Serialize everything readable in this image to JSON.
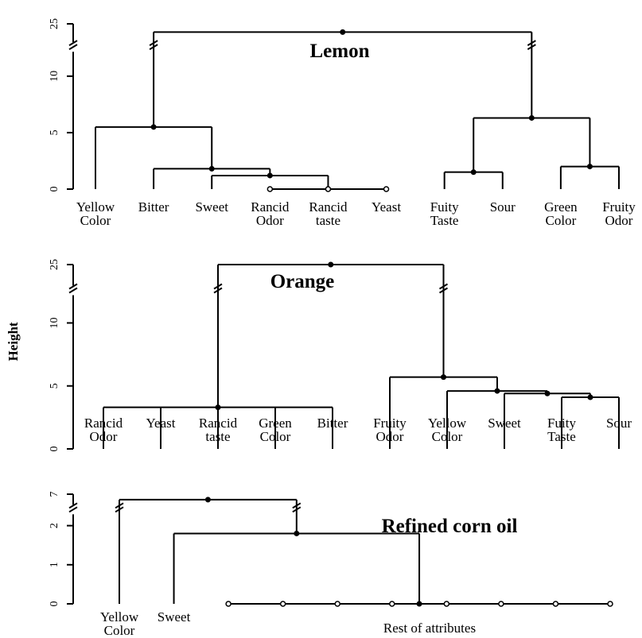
{
  "chart_data": [
    {
      "type": "dendrogram",
      "title": "Lemon",
      "categories": [
        "Yellow\nColor",
        "Bitter",
        "Sweet",
        "Rancid\nOdor",
        "Rancid\ntaste",
        "Yeast",
        "Fuity\nTaste",
        "Sour",
        "Green\nColor",
        "Fruity\nOdor"
      ],
      "merges": [
        {
          "children": [
            3,
            4,
            5
          ],
          "height": 0
        },
        {
          "children": [
            2,
            10
          ],
          "height": 1.2
        },
        {
          "children": [
            1,
            11
          ],
          "height": 1.8
        },
        {
          "children": [
            0,
            12
          ],
          "height": 5.5
        },
        {
          "children": [
            6,
            7
          ],
          "height": 1.5
        },
        {
          "children": [
            8,
            9
          ],
          "height": 2
        },
        {
          "children": [
            14,
            15
          ],
          "height": 6.3
        },
        {
          "children": [
            13,
            16
          ],
          "height": 23.5
        }
      ],
      "ylim": [
        0,
        25
      ],
      "yticks": [
        0,
        5,
        10,
        25
      ],
      "axis_break": [
        12,
        22
      ]
    },
    {
      "type": "dendrogram",
      "title": "Orange",
      "ylabel": "Height",
      "categories": [
        "Rancid\nOdor",
        "Yeast",
        "Rancid\ntaste",
        "Green\nColor",
        "Bitter",
        "Fruity\nOdor",
        "Yellow\nColor",
        "Sweet",
        "Fuity\nTaste",
        "Sour"
      ],
      "merges": [
        {
          "children": [
            0,
            1,
            2,
            3,
            4
          ],
          "height": 3.3
        },
        {
          "children": [
            8,
            9
          ],
          "height": 4.1
        },
        {
          "children": [
            7,
            11
          ],
          "height": 4.4
        },
        {
          "children": [
            6,
            12
          ],
          "height": 4.6
        },
        {
          "children": [
            5,
            13
          ],
          "height": 5.7
        },
        {
          "children": [
            10,
            14
          ],
          "height": 25
        }
      ],
      "ylim": [
        0,
        25
      ],
      "yticks": [
        0,
        5,
        10,
        25
      ],
      "axis_break": [
        12,
        22
      ]
    },
    {
      "type": "dendrogram",
      "title": "Refined corn oil",
      "annotation": "Rest of attributes",
      "categories": [
        "Yellow\nColor",
        "Sweet",
        null,
        null,
        null,
        null,
        null,
        null,
        null,
        null
      ],
      "merges": [
        {
          "children": [
            2,
            3,
            4,
            5,
            6,
            7,
            8,
            9
          ],
          "height": 0
        },
        {
          "children": [
            1,
            10
          ],
          "height": 1.8
        },
        {
          "children": [
            0,
            11
          ],
          "height": 6.5
        }
      ],
      "ylim": [
        0,
        7
      ],
      "yticks": [
        0,
        1,
        2,
        7
      ],
      "axis_break": [
        2.3,
        6
      ]
    }
  ]
}
